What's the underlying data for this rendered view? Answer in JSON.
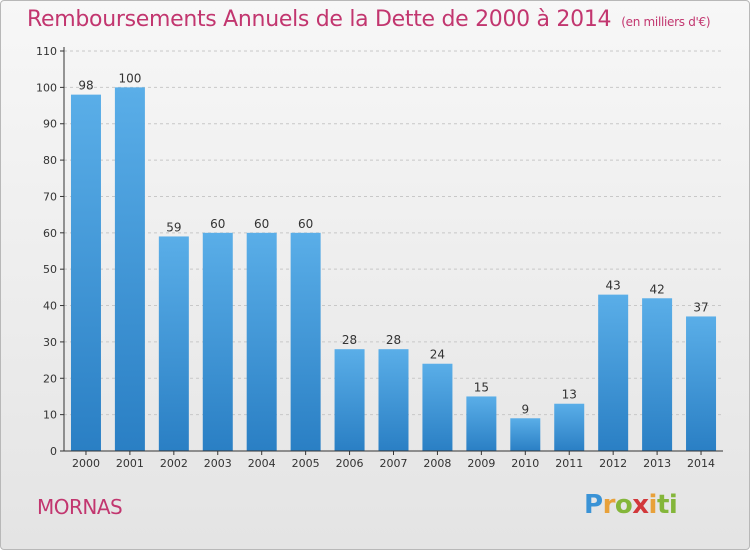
{
  "title": "Remboursements Annuels de la Dette de 2000 à 2014",
  "unit": "(en milliers d'€)",
  "commune": "MORNAS",
  "logo": {
    "text": "Proxiti"
  },
  "colors": {
    "accent": "#c2366f",
    "bar_top": "#5aaee8",
    "bar_bottom": "#2a7fc4",
    "axis": "#333333"
  },
  "chart_data": {
    "type": "bar",
    "categories": [
      "2000",
      "2001",
      "2002",
      "2003",
      "2004",
      "2005",
      "2006",
      "2007",
      "2008",
      "2009",
      "2010",
      "2011",
      "2012",
      "2013",
      "2014"
    ],
    "values": [
      98,
      100,
      59,
      60,
      60,
      60,
      28,
      28,
      24,
      15,
      9,
      13,
      43,
      42,
      37
    ],
    "ylim": [
      0,
      110
    ],
    "yticks": [
      0,
      10,
      20,
      30,
      40,
      50,
      60,
      70,
      80,
      90,
      100,
      110
    ],
    "grid": true,
    "legend": "none"
  }
}
